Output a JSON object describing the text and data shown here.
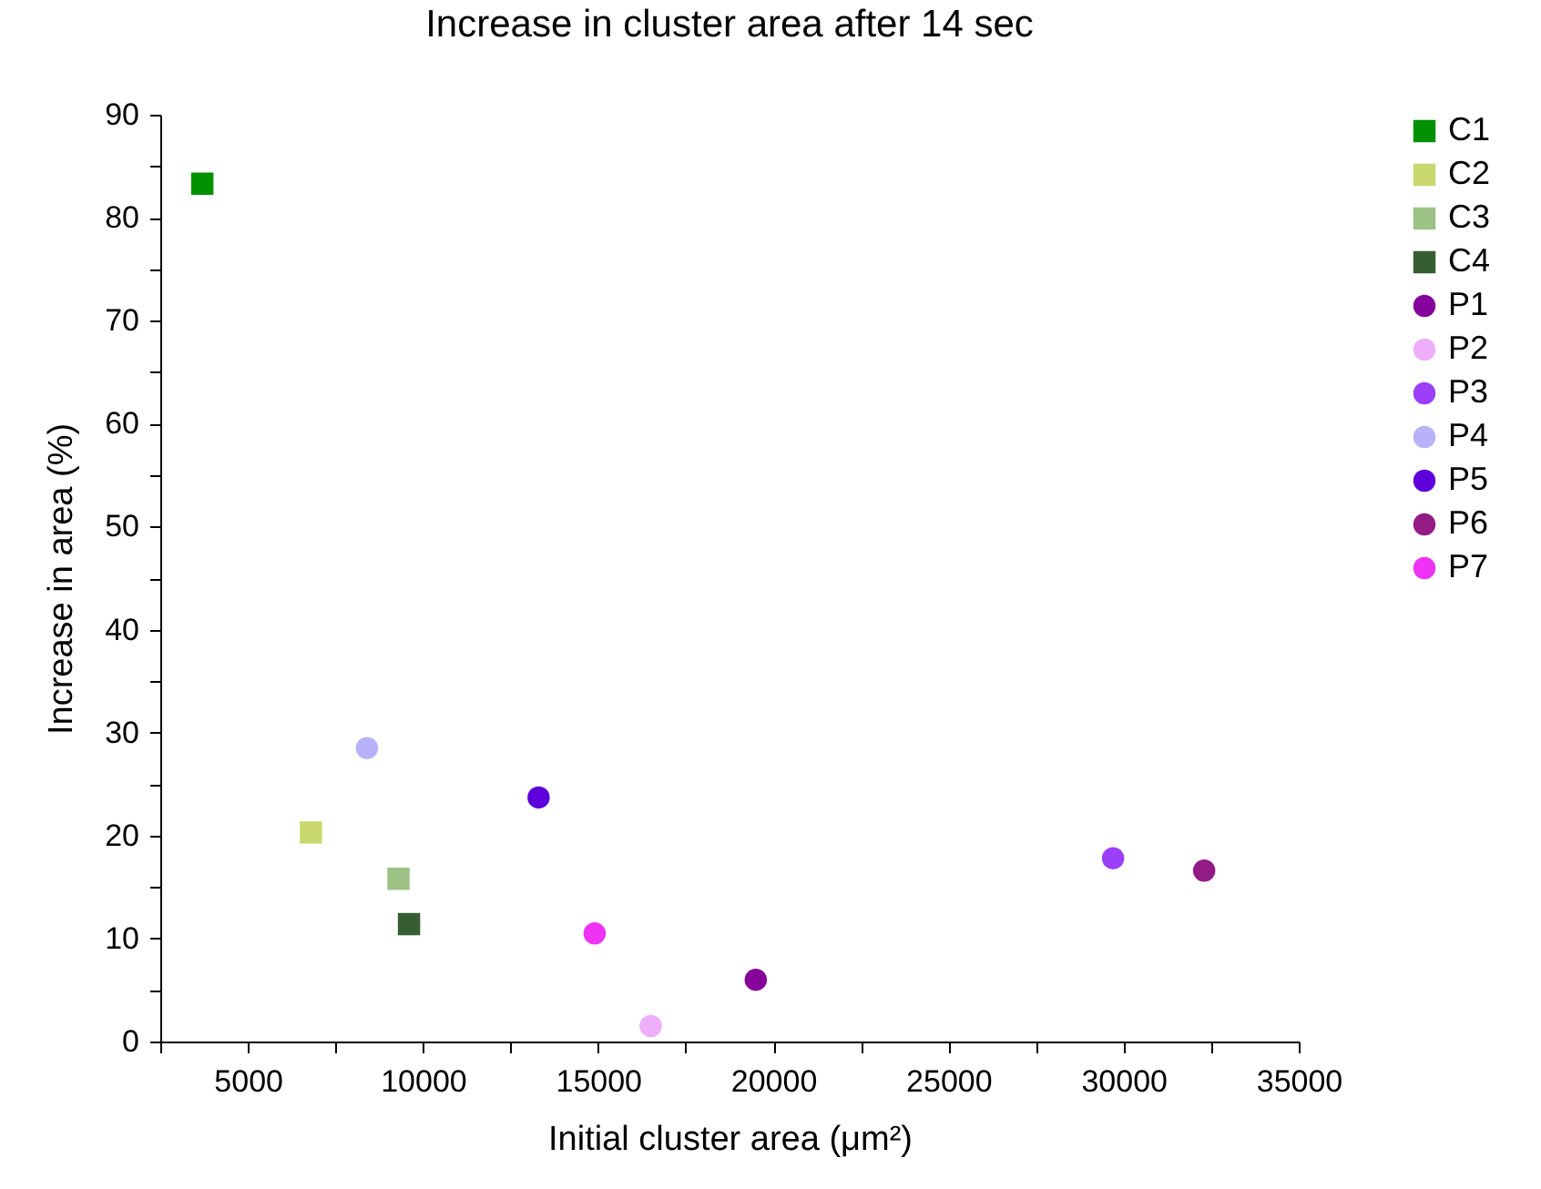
{
  "chart_data": {
    "type": "scatter",
    "title": "Increase in cluster area after 14 sec",
    "xlabel": "Initial cluster area (μm²)",
    "ylabel": "Increase in area (%)",
    "xlim": [
      2500,
      35000
    ],
    "ylim": [
      0,
      90
    ],
    "xticks": [
      {
        "value": 2500,
        "label": null
      },
      5000,
      {
        "value": 7500,
        "label": null
      },
      10000,
      {
        "value": 12500,
        "label": null
      },
      15000,
      {
        "value": 17500,
        "label": null
      },
      20000,
      {
        "value": 22500,
        "label": null
      },
      25000,
      {
        "value": 27500,
        "label": null
      },
      30000,
      {
        "value": 32500,
        "label": null
      },
      35000
    ],
    "yticks": [
      0,
      {
        "value": 5,
        "label": null
      },
      10,
      {
        "value": 15,
        "label": null
      },
      20,
      {
        "value": 25,
        "label": null
      },
      30,
      {
        "value": 35,
        "label": null
      },
      40,
      {
        "value": 45,
        "label": null
      },
      50,
      {
        "value": 55,
        "label": null
      },
      60,
      {
        "value": 65,
        "label": null
      },
      70,
      {
        "value": 75,
        "label": null
      },
      80,
      {
        "value": 85,
        "label": null
      },
      90
    ],
    "grid": false,
    "legend": "top right",
    "series": [
      {
        "name": "C1",
        "color": "#009100",
        "marker": "square",
        "x": [
          3700
        ],
        "values": [
          83.3
        ]
      },
      {
        "name": "C2",
        "color": "#c8d86e",
        "marker": "square",
        "x": [
          6800
        ],
        "values": [
          20.3
        ]
      },
      {
        "name": "C3",
        "color": "#9cc385",
        "marker": "square",
        "x": [
          9300
        ],
        "values": [
          15.8
        ]
      },
      {
        "name": "C4",
        "color": "#375e33",
        "marker": "square",
        "x": [
          9600
        ],
        "values": [
          11.4
        ]
      },
      {
        "name": "P1",
        "color": "#86039b",
        "marker": "circle",
        "x": [
          19500
        ],
        "values": [
          6
        ]
      },
      {
        "name": "P2",
        "color": "#eeaefa",
        "marker": "circle",
        "x": [
          16500
        ],
        "values": [
          1.5
        ]
      },
      {
        "name": "P3",
        "color": "#9b3ff9",
        "marker": "circle",
        "x": [
          29700
        ],
        "values": [
          17.8
        ]
      },
      {
        "name": "P4",
        "color": "#b8b2fb",
        "marker": "circle",
        "x": [
          8400
        ],
        "values": [
          28.5
        ]
      },
      {
        "name": "P5",
        "color": "#5d00dc",
        "marker": "circle",
        "x": [
          13300
        ],
        "values": [
          23.7
        ]
      },
      {
        "name": "P6",
        "color": "#931b86",
        "marker": "circle",
        "x": [
          32300
        ],
        "values": [
          16.6
        ]
      },
      {
        "name": "P7",
        "color": "#ee33f7",
        "marker": "circle",
        "x": [
          14900
        ],
        "values": [
          10.5
        ]
      }
    ]
  }
}
